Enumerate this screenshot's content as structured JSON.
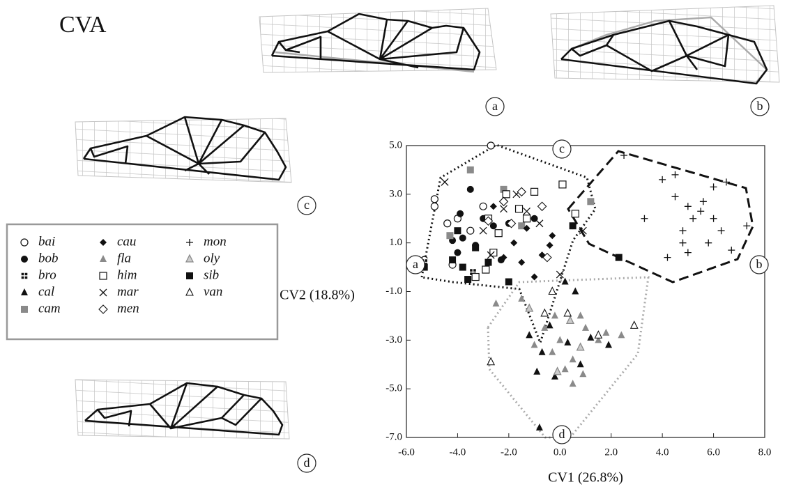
{
  "chart_data": {
    "type": "scatter",
    "title": "CVA",
    "x_label": "CV1 (26.8%)",
    "y_label": "CV2 (18.8%)",
    "xlim": [
      -6,
      8
    ],
    "ylim": [
      -7,
      5
    ],
    "xticks": [
      {
        "value": -6,
        "label": "-6.0"
      },
      {
        "value": -4,
        "label": "-4.0"
      },
      {
        "value": -2,
        "label": "-2.0"
      },
      {
        "value": 0,
        "label": "0.0"
      },
      {
        "value": 2,
        "label": "2.0"
      },
      {
        "value": 4,
        "label": "4.0"
      },
      {
        "value": 6,
        "label": "6.0"
      },
      {
        "value": 8,
        "label": "8.0"
      }
    ],
    "yticks": [
      {
        "value": 5,
        "label": "5.0"
      },
      {
        "value": 3,
        "label": "3.0"
      },
      {
        "value": 1,
        "label": "1.0"
      },
      {
        "value": -1,
        "label": "-1.0"
      },
      {
        "value": -3,
        "label": "-3.0"
      },
      {
        "value": -5,
        "label": "-5.0"
      },
      {
        "value": -7,
        "label": "-7.0"
      }
    ],
    "hull_labels": [
      "a",
      "b",
      "c",
      "d"
    ],
    "grid_labels": [
      "a",
      "b",
      "c",
      "d"
    ],
    "series": [
      {
        "name": "bai",
        "marker": "circle-open",
        "color": "#111",
        "x": [
          -5.3,
          -4.9,
          -4.9,
          -4.4,
          -4.2,
          -3.0,
          -2.7,
          -3.5,
          -4.0
        ],
        "y": [
          0.3,
          2.8,
          2.5,
          1.8,
          0.1,
          2.5,
          5.0,
          1.5,
          2.0
        ]
      },
      {
        "name": "bob",
        "marker": "circle",
        "color": "#111",
        "x": [
          -3.9,
          -3.5,
          -3.8,
          -4.2,
          -3.0,
          -2.6,
          -3.3,
          -2.0,
          -1.0,
          -4.0,
          -2.3
        ],
        "y": [
          2.2,
          3.2,
          1.2,
          1.1,
          2.0,
          1.7,
          0.9,
          1.8,
          2.0,
          0.6,
          0.3
        ]
      },
      {
        "name": "bro",
        "marker": "square-cross",
        "color": "#111",
        "x": [
          -5.3,
          -3.4
        ],
        "y": [
          0.2,
          -0.2
        ]
      },
      {
        "name": "cal",
        "marker": "triangle",
        "color": "#111",
        "x": [
          -0.8,
          -0.2,
          0.3,
          -0.7,
          1.2,
          0.8,
          -0.4,
          0.6,
          -0.9,
          1.9,
          -1.2,
          0.2
        ],
        "y": [
          -6.6,
          -4.5,
          -3.1,
          -3.5,
          -2.9,
          -4.0,
          -2.4,
          -1.0,
          -4.3,
          -3.2,
          -2.8,
          -0.6
        ]
      },
      {
        "name": "cam",
        "marker": "square",
        "color": "#8a8a8a",
        "x": [
          -3.5,
          -2.2,
          1.2,
          -4.3,
          -1.5
        ],
        "y": [
          4.0,
          3.2,
          2.7,
          1.3,
          1.7
        ]
      },
      {
        "name": "cau",
        "marker": "diamond",
        "color": "#111",
        "x": [
          -2.6,
          -1.8,
          -1.3,
          -0.4,
          -0.7,
          -2.2,
          -1.0,
          -1.5,
          -0.3,
          0.5
        ],
        "y": [
          2.5,
          1.0,
          1.6,
          0.9,
          0.5,
          0.4,
          -0.4,
          0.2,
          1.3,
          1.7
        ]
      },
      {
        "name": "fla",
        "marker": "triangle",
        "color": "#8a8a8a",
        "x": [
          -0.2,
          0.5,
          1.0,
          -0.3,
          0.2,
          1.5,
          -1.5,
          -2.5,
          -1.0,
          0.8,
          1.8,
          -0.6,
          0.0,
          0.5,
          2.4,
          0.9
        ],
        "y": [
          -2.0,
          -3.8,
          -2.5,
          -3.5,
          -4.2,
          -3.0,
          -1.3,
          -1.5,
          -3.2,
          -2.0,
          -2.7,
          -2.5,
          -3.0,
          -4.8,
          -2.8,
          -4.4
        ]
      },
      {
        "name": "him",
        "marker": "square-open",
        "color": "#111",
        "x": [
          -2.8,
          -2.1,
          -1.6,
          -1.0,
          0.1,
          -2.4,
          -3.3,
          -2.6,
          -1.3,
          0.6,
          -2.9
        ],
        "y": [
          2.0,
          3.0,
          2.4,
          3.1,
          3.4,
          1.4,
          -0.4,
          0.6,
          2.0,
          2.2,
          -0.1
        ]
      },
      {
        "name": "mar",
        "marker": "cross-x",
        "color": "#111",
        "x": [
          -4.5,
          -3.0,
          -2.2,
          -1.3,
          -0.8,
          0.0,
          -2.7,
          0.9,
          -1.7
        ],
        "y": [
          3.5,
          1.5,
          2.4,
          2.3,
          1.8,
          -0.3,
          0.5,
          1.5,
          3.0
        ]
      },
      {
        "name": "men",
        "marker": "diamond-open",
        "color": "#111",
        "x": [
          -2.2,
          -1.5,
          -0.7,
          -2.8,
          -1.9,
          -0.5
        ],
        "y": [
          2.7,
          3.1,
          2.5,
          1.9,
          1.8,
          0.4
        ]
      },
      {
        "name": "mon",
        "marker": "plus",
        "color": "#111",
        "x": [
          2.5,
          4.0,
          4.5,
          5.0,
          5.5,
          6.0,
          6.5,
          4.8,
          5.2,
          6.3,
          5.8,
          4.2,
          5.0,
          6.7,
          7.3,
          3.3,
          4.8,
          5.6,
          6.0,
          4.5
        ],
        "y": [
          4.6,
          3.6,
          3.8,
          2.5,
          2.3,
          3.3,
          3.5,
          1.5,
          2.0,
          1.5,
          1.0,
          0.4,
          0.6,
          0.7,
          1.7,
          2.0,
          1.0,
          2.7,
          2.0,
          2.9
        ]
      },
      {
        "name": "oly",
        "marker": "triangle-gray-open",
        "color": "#8a8a8a",
        "x": [
          -0.1,
          0.4,
          -1.2,
          0.8
        ],
        "y": [
          -4.3,
          -2.2,
          -1.7,
          -3.3
        ]
      },
      {
        "name": "sib",
        "marker": "square",
        "color": "#111",
        "x": [
          -5.3,
          -3.8,
          -3.3,
          -2.0,
          -3.6,
          -4.0,
          0.5,
          2.3,
          -2.8,
          -4.2
        ],
        "y": [
          0.0,
          0.0,
          0.8,
          -0.6,
          -0.5,
          1.5,
          1.7,
          0.4,
          0.2,
          0.3
        ]
      },
      {
        "name": "van",
        "marker": "triangle-open",
        "color": "#111",
        "x": [
          -0.6,
          -2.7,
          2.9,
          -0.3,
          0.3,
          1.5
        ],
        "y": [
          -1.9,
          -3.9,
          -2.4,
          -1.0,
          -1.9,
          -2.8
        ]
      }
    ]
  }
}
